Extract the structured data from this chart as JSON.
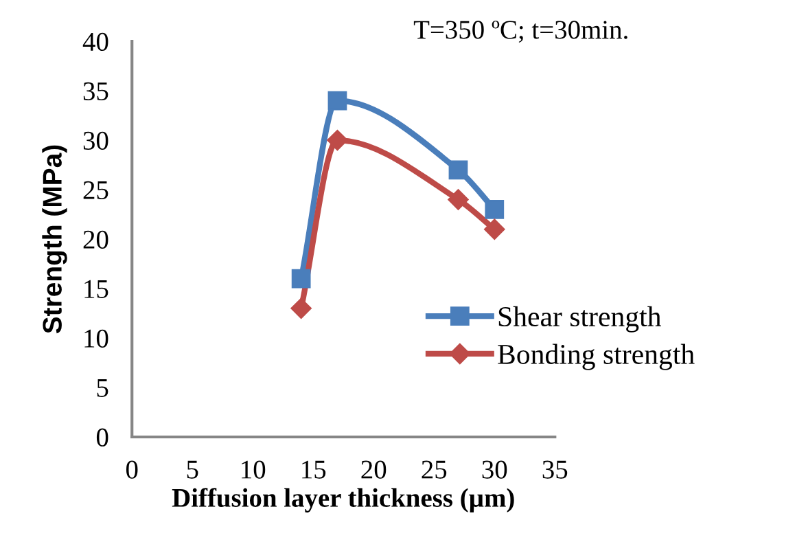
{
  "chart_data": {
    "type": "line",
    "xlabel": "Diffusion layer thickness (µm)",
    "ylabel": "Strength (MPa)",
    "annotations": [
      "T=350 ºC; t=30min."
    ],
    "x": [
      14,
      17,
      27,
      30
    ],
    "series": [
      {
        "name": "Shear strength",
        "color": "#4a7ebb",
        "values": [
          16,
          34,
          27,
          23
        ],
        "marker": "square"
      },
      {
        "name": "Bonding strength",
        "color": "#be4b48",
        "values": [
          13,
          30,
          24,
          21
        ],
        "marker": "diamond"
      }
    ],
    "xlim": [
      0,
      35
    ],
    "xticks": [
      0,
      5,
      10,
      15,
      20,
      25,
      30,
      35
    ],
    "ylim": [
      0,
      40
    ],
    "yticks": [
      0,
      5,
      10,
      15,
      20,
      25,
      30,
      35,
      40
    ],
    "grid": false,
    "legend": "right",
    "line_style": "solid"
  }
}
